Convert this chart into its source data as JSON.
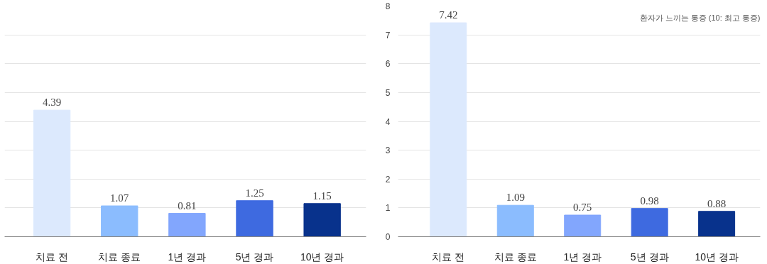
{
  "chart_data": [
    {
      "type": "bar",
      "categories": [
        "치료 전",
        "치료 종료",
        "1년 경과",
        "5년 경과",
        "10년 경과"
      ],
      "values": [
        4.39,
        1.07,
        0.81,
        1.25,
        1.15
      ],
      "colors": [
        "#dce9fd",
        "#8bbcfe",
        "#82a6fd",
        "#3e6ae0",
        "#08328c"
      ],
      "ylim": [
        0,
        8
      ],
      "yticks": [
        0,
        1,
        2,
        3,
        4,
        5,
        6,
        7,
        8
      ],
      "tick_labels": "x",
      "grid": "y",
      "data_labels": true
    },
    {
      "type": "bar",
      "categories": [
        "치료 전",
        "치료 종료",
        "1년 경과",
        "5년 경과",
        "10년 경과"
      ],
      "values": [
        7.42,
        1.09,
        0.75,
        0.98,
        0.88
      ],
      "colors": [
        "#dce9fd",
        "#8bbcfe",
        "#82a6fd",
        "#3e6ae0",
        "#08328c"
      ],
      "ylim": [
        0,
        8
      ],
      "yticks": [
        0,
        1,
        2,
        3,
        4,
        5,
        6,
        7,
        8
      ],
      "grid": "y",
      "data_labels": true,
      "annotations": [
        "환자가 느끼는 통증 (10: 최고 통증)"
      ]
    }
  ]
}
